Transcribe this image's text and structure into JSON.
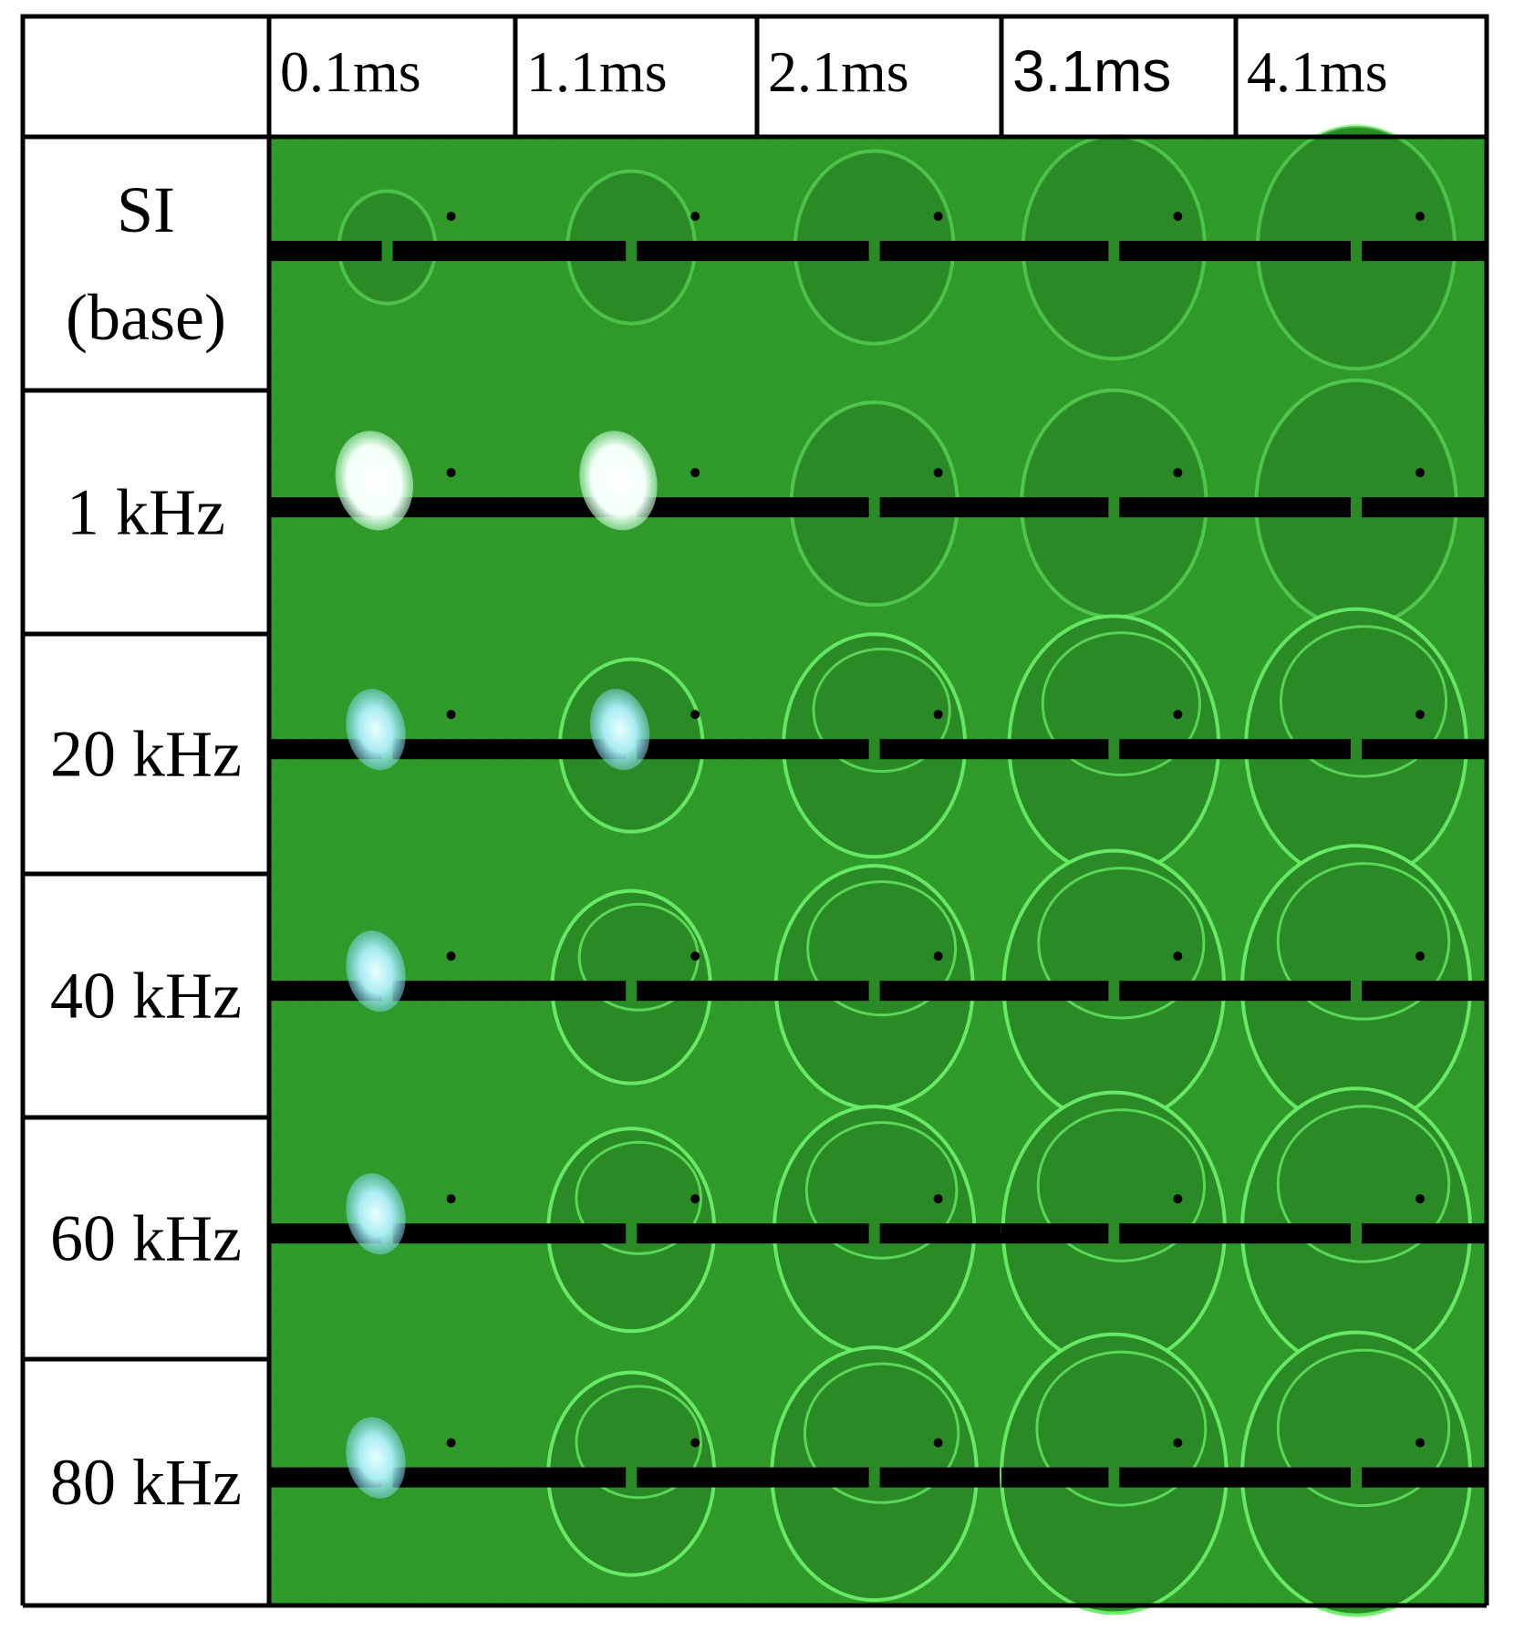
{
  "figure": {
    "columns": [
      {
        "label": "0.1ms"
      },
      {
        "label": "1.1ms"
      },
      {
        "label": "2.1ms"
      },
      {
        "label": "3.1ms"
      },
      {
        "label": "4.1ms"
      }
    ],
    "rows": [
      {
        "label_lines": [
          "SI",
          "(base)"
        ],
        "flash": 0,
        "ring_growth": [
          0.15,
          0.35,
          0.55,
          0.7,
          0.8
        ],
        "ring_brightness": 0.25
      },
      {
        "label_lines": [
          "1 kHz"
        ],
        "flash": 2,
        "ring_growth": [
          0.0,
          0.0,
          0.6,
          0.72,
          0.82
        ],
        "ring_brightness": 0.3
      },
      {
        "label_lines": [
          "20 kHz"
        ],
        "flash": 1,
        "ring_growth": [
          0.0,
          0.45,
          0.7,
          0.88,
          0.95
        ],
        "ring_brightness": 0.85
      },
      {
        "label_lines": [
          "40 kHz"
        ],
        "flash": 1,
        "ring_growth": [
          0.0,
          0.55,
          0.8,
          0.95,
          1.0
        ],
        "ring_brightness": 0.9
      },
      {
        "label_lines": [
          "60 kHz"
        ],
        "flash": 1,
        "ring_growth": [
          0.0,
          0.6,
          0.82,
          0.96,
          1.0
        ],
        "ring_brightness": 0.9
      },
      {
        "label_lines": [
          "80 kHz"
        ],
        "flash": 1,
        "ring_growth": [
          0.0,
          0.6,
          0.85,
          0.98,
          1.0
        ],
        "ring_brightness": 0.9
      }
    ],
    "colors": {
      "background_green": "#2f9a2a",
      "ring_green": "#6cf06a",
      "electrode": "#000000",
      "flash_white": "#ffffff",
      "flash_cyan": "#8fe8f0"
    }
  }
}
